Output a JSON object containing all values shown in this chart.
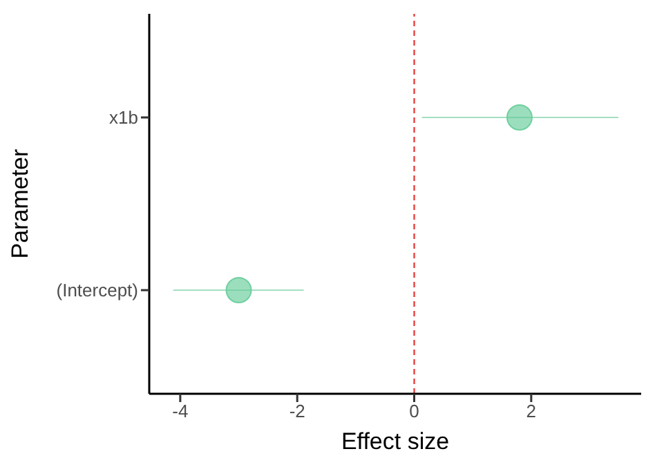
{
  "chart_data": {
    "type": "scatter",
    "xlabel": "Effect size",
    "ylabel": "Parameter",
    "categories": [
      "x1b",
      "(Intercept)"
    ],
    "orientation": "horizontal",
    "values": [
      1.8,
      -3.0
    ],
    "errors": [
      [
        0.13,
        3.49
      ],
      [
        -4.12,
        -1.89
      ]
    ],
    "color": "#66cc99",
    "marker": "circle",
    "grid": false,
    "xlim": [
      -4.53,
      3.88
    ],
    "xticks": [
      -4,
      -2,
      0,
      2
    ],
    "ref_lines": [
      {
        "axis": "x",
        "value": 0,
        "color": "#e8413f",
        "line_style": "dashed"
      }
    ]
  }
}
